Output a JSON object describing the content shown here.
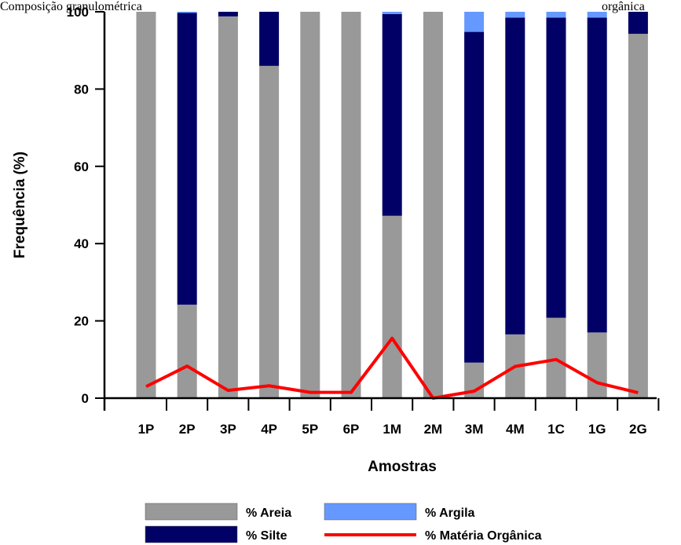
{
  "caption": {
    "left": "Composição granulométrica",
    "right": "orgânica"
  },
  "chart_data": {
    "type": "bar",
    "stacked": true,
    "categories": [
      "1P",
      "2P",
      "3P",
      "4P",
      "5P",
      "6P",
      "1M",
      "2M",
      "3M",
      "4M",
      "1C",
      "1G",
      "2G"
    ],
    "series": [
      {
        "name": "% Areia",
        "kind": "bar",
        "color": "#999999",
        "values": [
          100,
          24.2,
          98.8,
          86,
          100,
          100,
          47.2,
          100,
          9.2,
          16.5,
          20.8,
          17,
          94.3
        ]
      },
      {
        "name": "% Silte",
        "kind": "bar",
        "color": "#000066",
        "values": [
          0,
          75.5,
          1.2,
          14,
          0,
          0,
          52.2,
          0,
          85.6,
          82,
          77.7,
          81.5,
          5.7
        ]
      },
      {
        "name": "% Argila",
        "kind": "bar",
        "color": "#6699ff",
        "values": [
          0,
          0.3,
          0,
          0,
          0,
          0,
          0.6,
          0,
          5.2,
          1.5,
          1.5,
          1.5,
          0
        ]
      },
      {
        "name": "% Matéria Orgânica",
        "kind": "line",
        "color": "#ff0000",
        "values": [
          3,
          8.3,
          2,
          3.2,
          1.5,
          1.5,
          15.5,
          0,
          1.8,
          8.2,
          10,
          4,
          1.4
        ]
      }
    ],
    "xlabel": "Amostras",
    "ylabel": "Frequência (%)",
    "ylim": [
      0,
      100
    ],
    "yticks": [
      0,
      20,
      40,
      60,
      80,
      100
    ],
    "grid": false,
    "legend_position": "bottom"
  }
}
